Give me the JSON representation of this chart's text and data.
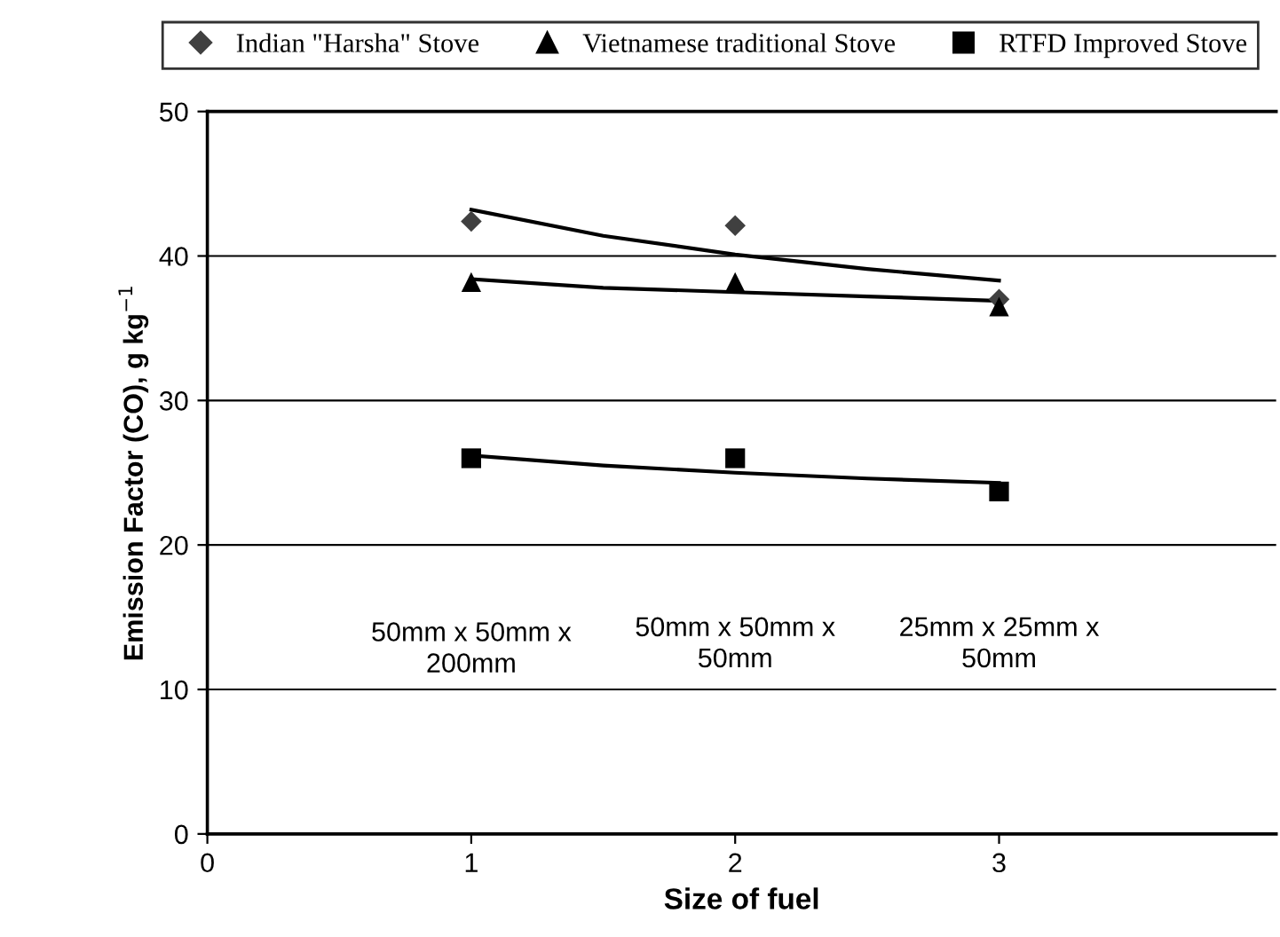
{
  "chart_data": {
    "type": "scatter",
    "xlabel": "Size of fuel",
    "ylabel": "Emission Factor (CO), g kg$^{−1}$",
    "xlim": [
      0,
      4.05
    ],
    "xticks": [
      0,
      1,
      2,
      3
    ],
    "ylim": [
      0,
      50
    ],
    "yticks": [
      0,
      10,
      20,
      30,
      40,
      50
    ],
    "grid": "y",
    "legend": "top",
    "series": [
      {
        "name": "Indian \"Harsha\" Stove",
        "color": "#404040",
        "marker": "diamond",
        "x": [
          1,
          2,
          3
        ],
        "values": [
          42.4,
          42.1,
          37.0
        ]
      },
      {
        "name": "Vietnamese traditional Stove",
        "color": "#000000",
        "marker": "triangle",
        "x": [
          1,
          2,
          3
        ],
        "values": [
          38.2,
          38.2,
          36.5
        ]
      },
      {
        "name": "RTFD Improved Stove",
        "color": "#000000",
        "marker": "square",
        "x": [
          1,
          2,
          3
        ],
        "values": [
          26.0,
          26.0,
          23.7
        ]
      },
      {
        "type": "line",
        "color": "#000000",
        "x": [
          1,
          1.5,
          2,
          2.5,
          3
        ],
        "values": [
          43.2,
          41.4,
          40.1,
          39.1,
          38.3
        ]
      },
      {
        "type": "line",
        "color": "#000000",
        "x": [
          1,
          1.5,
          2,
          2.5,
          3
        ],
        "values": [
          38.4,
          37.8,
          37.5,
          37.2,
          36.9
        ]
      },
      {
        "type": "line",
        "color": "#000000",
        "x": [
          1,
          1.5,
          2,
          2.5,
          3
        ],
        "values": [
          26.2,
          25.5,
          25.0,
          24.6,
          24.3
        ]
      }
    ],
    "annotations": [
      "50mm x 50mm x\n200mm",
      "50mm x 50mm x\n50mm",
      "25mm x 25mm x\n50mm"
    ]
  }
}
